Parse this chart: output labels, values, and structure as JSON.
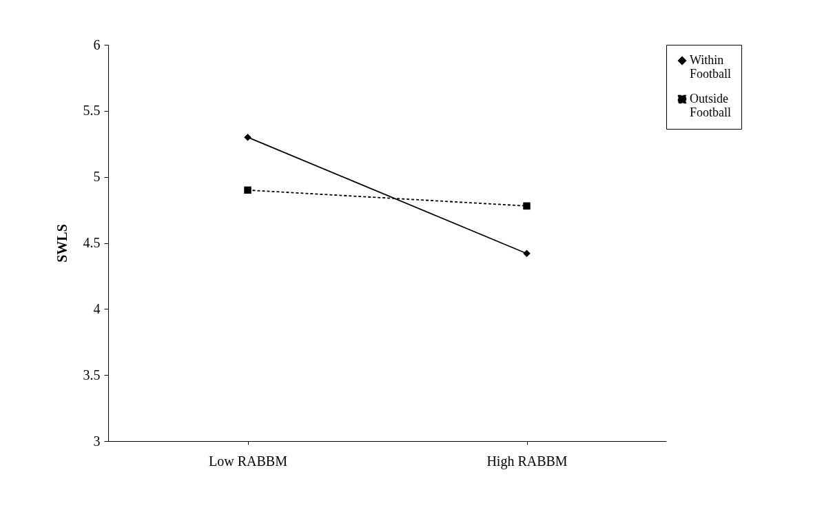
{
  "chart_data": {
    "type": "line",
    "ylabel": "SWLS",
    "categories": [
      "Low RABBM",
      "High RABBM"
    ],
    "series": [
      {
        "name": "Within Football",
        "color": "#000000",
        "values": [
          5.3,
          4.42
        ],
        "marker": "diamond",
        "line_style": "solid"
      },
      {
        "name": "Outside Football",
        "color": "#000000",
        "values": [
          4.9,
          4.78
        ],
        "marker": "square",
        "line_style": "dashed"
      }
    ],
    "ylim": [
      3,
      6
    ],
    "yticks": [
      3,
      3.5,
      4,
      4.5,
      5,
      5.5,
      6
    ],
    "grid": false,
    "legend": "right"
  }
}
